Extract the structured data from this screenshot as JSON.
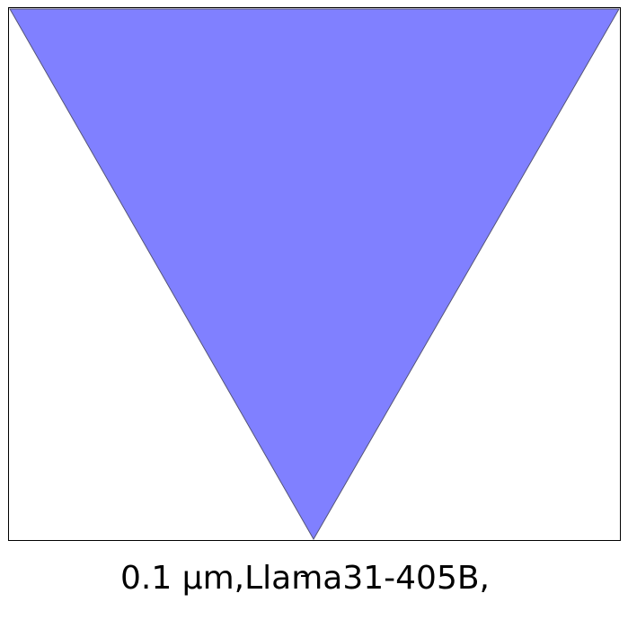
{
  "figure": {
    "caption": "0.1 μm,Llama31-405B,",
    "shape": "inverted-triangle",
    "fill_color": "#8080ff",
    "stroke_color": "#555577",
    "frame_color": "#000000"
  }
}
